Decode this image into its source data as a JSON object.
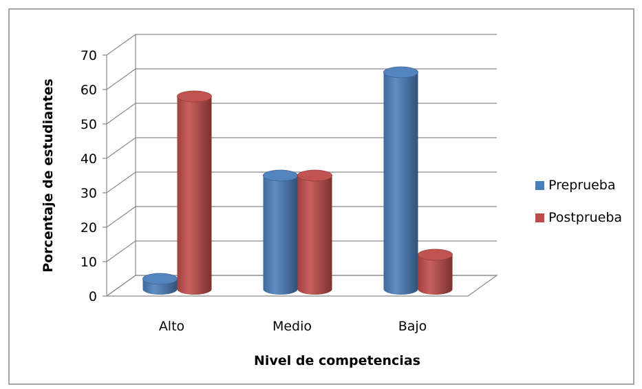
{
  "chart_data": {
    "type": "bar",
    "style": "3d-cylinder",
    "categories": [
      "Alto",
      "Medio",
      "Bajo"
    ],
    "series": [
      {
        "name": "Preprueba",
        "values": [
          3,
          33,
          63
        ],
        "color": "#4a7ebb"
      },
      {
        "name": "Postprueba",
        "values": [
          56,
          33,
          10
        ],
        "color": "#be4b48"
      }
    ],
    "xlabel": "Nivel de competencias",
    "ylabel": "Porcentaje de estudiantes",
    "ylim": [
      0,
      70
    ],
    "yticks": [
      "0",
      "10",
      "20",
      "30",
      "40",
      "50",
      "60",
      "70"
    ],
    "grid": true,
    "legend": "right"
  }
}
